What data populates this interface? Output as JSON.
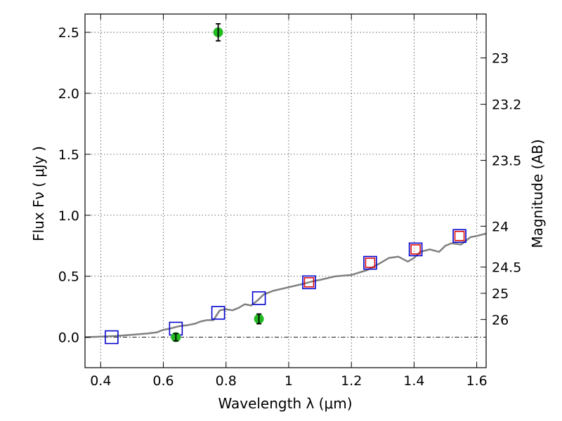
{
  "chart_data": {
    "type": "scatter",
    "xlabel": "Wavelength  λ (μm)",
    "ylabel": "Flux  Fν  ( μJy )",
    "ylabel_right": "Magnitude (AB)",
    "xlim": [
      0.35,
      1.63
    ],
    "ylim": [
      -0.25,
      2.65
    ],
    "x_ticks": [
      0.4,
      0.6,
      0.8,
      1.0,
      1.2,
      1.4,
      1.6
    ],
    "x_tick_labels": [
      "0.4",
      "0.6",
      "0.8",
      "1",
      "1.2",
      "1.4",
      "1.6"
    ],
    "y_ticks": [
      0.0,
      0.5,
      1.0,
      1.5,
      2.0,
      2.5
    ],
    "y_tick_labels": [
      "0.0",
      "0.5",
      "1.0",
      "1.5",
      "2.0",
      "2.5"
    ],
    "mag_ticks": [
      {
        "label": "23",
        "flux": 2.29
      },
      {
        "label": "23.2",
        "flux": 1.91
      },
      {
        "label": "23.5",
        "flux": 1.45
      },
      {
        "label": "24",
        "flux": 0.91
      },
      {
        "label": "24.5",
        "flux": 0.575
      },
      {
        "label": "25",
        "flux": 0.36
      },
      {
        "label": "26",
        "flux": 0.145
      }
    ],
    "grid": true,
    "zero_line": true,
    "colors": {
      "model": "#808080",
      "observed": "#22bb22",
      "model_band": "#0000cc",
      "model_band_inner": "#dd0000",
      "errorbar": "#000000"
    },
    "model_spectrum": {
      "x": [
        0.35,
        0.4,
        0.45,
        0.5,
        0.55,
        0.58,
        0.6,
        0.62,
        0.65,
        0.68,
        0.7,
        0.72,
        0.74,
        0.76,
        0.78,
        0.8,
        0.82,
        0.84,
        0.86,
        0.88,
        0.9,
        0.92,
        0.95,
        1.0,
        1.05,
        1.08,
        1.1,
        1.15,
        1.2,
        1.25,
        1.28,
        1.3,
        1.32,
        1.35,
        1.38,
        1.4,
        1.42,
        1.45,
        1.48,
        1.5,
        1.52,
        1.55,
        1.58,
        1.6,
        1.63
      ],
      "y": [
        0.0,
        0.005,
        0.01,
        0.02,
        0.03,
        0.04,
        0.06,
        0.07,
        0.09,
        0.1,
        0.11,
        0.13,
        0.14,
        0.14,
        0.22,
        0.23,
        0.22,
        0.24,
        0.27,
        0.26,
        0.3,
        0.35,
        0.38,
        0.41,
        0.44,
        0.46,
        0.47,
        0.5,
        0.51,
        0.55,
        0.59,
        0.62,
        0.65,
        0.66,
        0.62,
        0.65,
        0.7,
        0.72,
        0.7,
        0.75,
        0.77,
        0.76,
        0.82,
        0.83,
        0.85
      ]
    },
    "model_bands": [
      {
        "x": 0.435,
        "y": 0.0,
        "inner": false
      },
      {
        "x": 0.64,
        "y": 0.07,
        "inner": false
      },
      {
        "x": 0.775,
        "y": 0.2,
        "inner": false
      },
      {
        "x": 0.905,
        "y": 0.32,
        "inner": false
      },
      {
        "x": 1.065,
        "y": 0.45,
        "inner": true
      },
      {
        "x": 1.26,
        "y": 0.61,
        "inner": true
      },
      {
        "x": 1.405,
        "y": 0.72,
        "inner": true
      },
      {
        "x": 1.545,
        "y": 0.83,
        "inner": true
      }
    ],
    "observed": [
      {
        "x": 0.64,
        "y": 0.0,
        "err": 0.03
      },
      {
        "x": 0.775,
        "y": 2.5,
        "err": 0.07
      },
      {
        "x": 0.905,
        "y": 0.15,
        "err": 0.04
      }
    ]
  }
}
